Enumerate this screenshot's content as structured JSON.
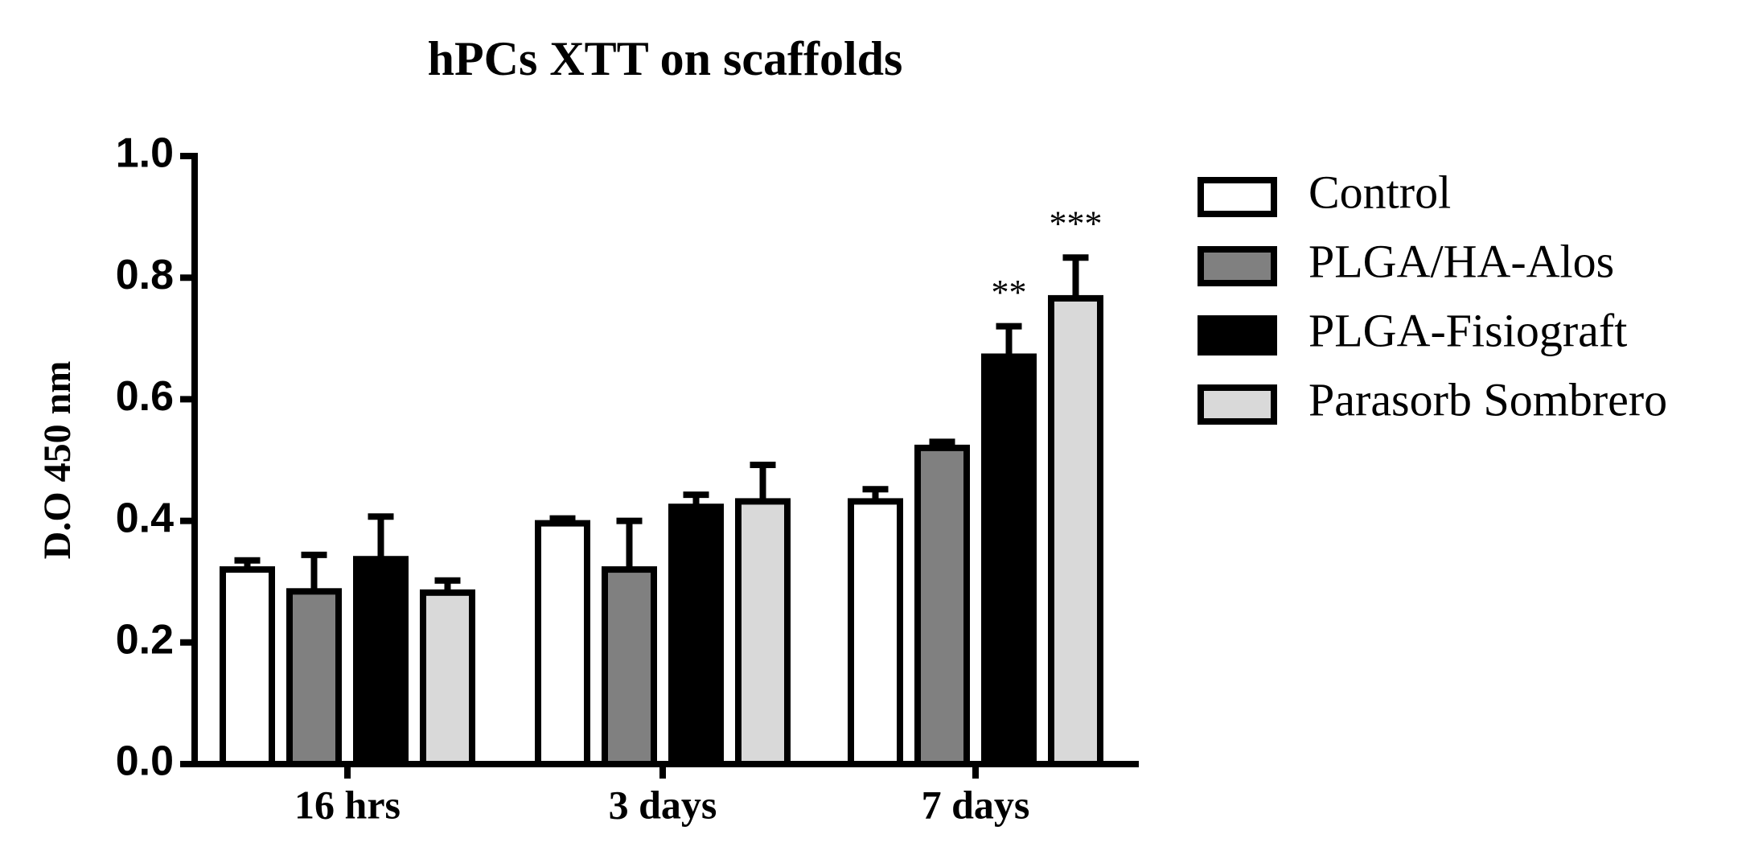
{
  "chart_data": {
    "type": "bar",
    "title": "hPCs XTT on scaffolds",
    "y_label": "D.O 450 nm",
    "categories": [
      "16 hrs",
      "3 days",
      "7 days"
    ],
    "series": [
      {
        "name": "Control",
        "color": "#ffffff",
        "values": [
          0.32,
          0.396,
          0.432
        ],
        "errors": [
          0.015,
          0.008,
          0.02
        ],
        "annotations": [
          null,
          null,
          null
        ]
      },
      {
        "name": "PLGA/HA-Alos",
        "color": "#808080",
        "values": [
          0.284,
          0.32,
          0.52
        ],
        "errors": [
          0.06,
          0.08,
          0.01
        ],
        "annotations": [
          null,
          null,
          null
        ]
      },
      {
        "name": "PLGA-Fisiograft",
        "color": "#000000",
        "values": [
          0.337,
          0.423,
          0.67
        ],
        "errors": [
          0.07,
          0.02,
          0.05
        ],
        "annotations": [
          null,
          null,
          "**"
        ]
      },
      {
        "name": "Parasorb Sombrero",
        "color": "#d9d9d9",
        "values": [
          0.282,
          0.432,
          0.766
        ],
        "errors": [
          0.02,
          0.06,
          0.067
        ],
        "annotations": [
          null,
          null,
          "***"
        ]
      }
    ],
    "ylim": [
      0,
      1.0
    ],
    "yticks": [
      {
        "value": 0,
        "label": "0.0"
      },
      0.2,
      0.4,
      0.6,
      0.8,
      {
        "value": 1.0,
        "label": "1.0"
      }
    ],
    "legend": "right"
  }
}
